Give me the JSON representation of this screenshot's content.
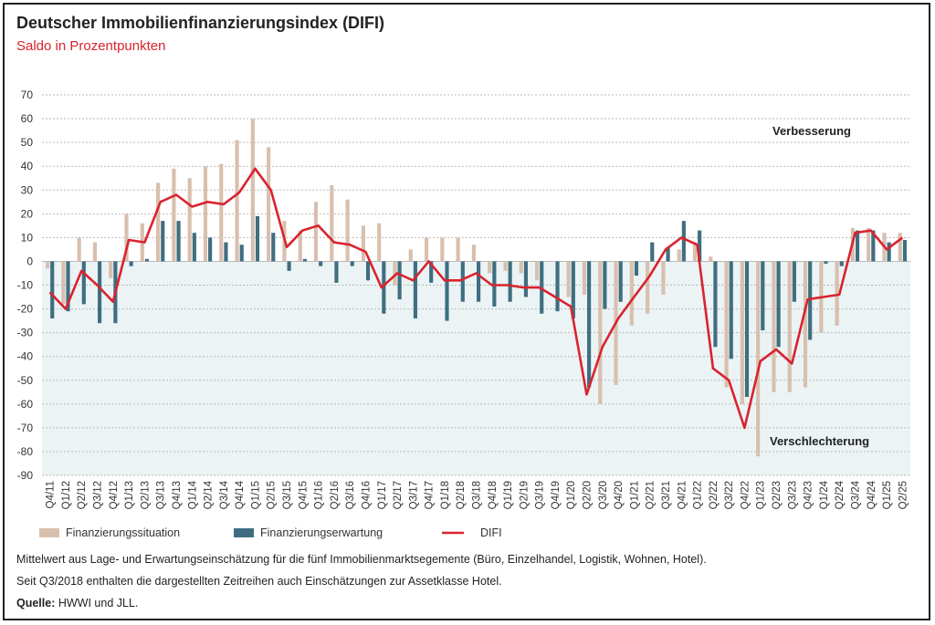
{
  "header": {
    "title": "Deutscher Immobilienfinanzierungsindex (DIFI)",
    "subtitle": "Saldo in Prozentpunkten"
  },
  "annotations": {
    "improve": "Verbesserung",
    "worsen": "Verschlechterung"
  },
  "notes": {
    "line1": "Mittelwert aus Lage- und Erwartungseinschätzung für die fünf Immobilienmarktsegemente (Büro, Einzelhandel, Logistik, Wohnen, Hotel).",
    "line2": "Seit Q3/2018 enthalten die dargestellten Zeitreihen auch Einschätzungen zur Assetklasse Hotel.",
    "source_label": "Quelle:",
    "source_value": " HWWI und JLL."
  },
  "colors": {
    "situation": "#d8bfae",
    "expectation": "#3f6e80",
    "difi": "#d9232e",
    "negative_area": "#ebf3f5",
    "grid": "#b9b9b9"
  },
  "chart_data": {
    "type": "bar",
    "title": "Deutscher Immobilienfinanzierungsindex (DIFI)",
    "subtitle": "Saldo in Prozentpunkten",
    "ylim": [
      -90,
      70
    ],
    "yticks": [
      70,
      60,
      50,
      40,
      30,
      20,
      10,
      0,
      -10,
      -20,
      -30,
      -40,
      -50,
      -60,
      -70,
      -80,
      -90
    ],
    "grid": true,
    "legend_position": "bottom-left",
    "categories": [
      "Q4/11",
      "Q1/12",
      "Q2/12",
      "Q3/12",
      "Q4/12",
      "Q1/13",
      "Q2/13",
      "Q3/13",
      "Q4/13",
      "Q1/14",
      "Q2/14",
      "Q3/14",
      "Q4/14",
      "Q1/15",
      "Q2/15",
      "Q3/15",
      "Q4/15",
      "Q1/16",
      "Q2/16",
      "Q3/16",
      "Q4/16",
      "Q1/17",
      "Q2/17",
      "Q3/17",
      "Q4/17",
      "Q1/18",
      "Q2/18",
      "Q3/18",
      "Q4/18",
      "Q1/19",
      "Q2/19",
      "Q3/19",
      "Q4/19",
      "Q1/20",
      "Q2/20",
      "Q3/20",
      "Q4/20",
      "Q1/21",
      "Q2/21",
      "Q3/21",
      "Q4/21",
      "Q1/22",
      "Q2/22",
      "Q3/22",
      "Q4/22",
      "Q1/23",
      "Q2/23",
      "Q3/23",
      "Q4/23",
      "Q1/24",
      "Q2/24",
      "Q3/24",
      "Q4/24",
      "Q1/25",
      "Q2/25"
    ],
    "tick_labels": [
      "Q4/11",
      "Q1/12",
      "Q2/12",
      "Q3/12",
      "Q4/12",
      "Q1/13",
      "Q2/13",
      "Q3/13",
      "Q4/13",
      "Q1/14",
      "Q2/14",
      "Q3/14",
      "Q4/14",
      "Q1/15",
      "Q2/15",
      "Q3/15",
      "Q4/15",
      "Q1/16",
      "Q2/16",
      "Q3/16",
      "Q4/16",
      "Q1/17",
      "Q2/17",
      "Q3/17",
      "Q4/17",
      "Q1/18",
      "Q2/18",
      "Q3/18",
      "Q4/18",
      "Q1/19",
      "Q2/19",
      "Q3/19",
      "Q4/19",
      "Q1/20",
      "Q2/20",
      "Q3/20",
      "Q4/20",
      "Q1/21",
      "Q2/21",
      "Q3/21",
      "Q4/21",
      "Q1/22",
      "Q2/22",
      "Q3/22",
      "Q4/22",
      "Q1/23",
      "Q2/23",
      "Q3/23",
      "Q4/23",
      "Q1/24",
      "Q2/24",
      "Q3/24",
      "Q4/24",
      "Q1/25",
      "Q2/25"
    ],
    "series": [
      {
        "name": "Finanzierungssituation",
        "type": "bar",
        "values": [
          -3,
          -18,
          10,
          8,
          -7,
          20,
          16,
          33,
          39,
          35,
          40,
          41,
          51,
          60,
          48,
          17,
          13,
          25,
          32,
          26,
          15,
          16,
          -10,
          5,
          10,
          10,
          10,
          7,
          -5,
          -4,
          -5,
          -8,
          0,
          -15,
          -14,
          -60,
          -52,
          -27,
          -22,
          -14,
          5,
          8,
          2,
          -53,
          -60,
          -82,
          -55,
          -55,
          -53,
          -30,
          -27,
          14,
          14,
          12,
          12
        ]
      },
      {
        "name": "Finanzierungserwartung",
        "type": "bar",
        "values": [
          -24,
          -21,
          -18,
          -26,
          -26,
          -2,
          1,
          17,
          17,
          12,
          10,
          8,
          7,
          19,
          12,
          -4,
          1,
          -2,
          -9,
          -2,
          -8,
          -22,
          -16,
          -24,
          -9,
          -25,
          -17,
          -17,
          -19,
          -17,
          -15,
          -22,
          -21,
          -24,
          -53,
          -20,
          -17,
          -6,
          8,
          6,
          17,
          13,
          -36,
          -41,
          -57,
          -29,
          -36,
          -17,
          -33,
          -1,
          -2,
          13,
          13,
          8,
          9
        ]
      },
      {
        "name": "DIFI",
        "type": "line",
        "values": [
          -13,
          -20,
          -4,
          -10,
          -17,
          9,
          8,
          25,
          28,
          23,
          25,
          24,
          29,
          39,
          30,
          6,
          13,
          15,
          8,
          7,
          4,
          -11,
          -5,
          -8,
          0,
          -8,
          -8,
          -5,
          -10,
          -10,
          -11,
          -11,
          -15,
          -19,
          -56,
          -36,
          -24,
          -15,
          -6,
          5,
          10,
          7,
          -45,
          -50,
          -70,
          -42,
          -37,
          -43,
          -16,
          -15,
          -14,
          12,
          13,
          5,
          10
        ]
      }
    ]
  }
}
